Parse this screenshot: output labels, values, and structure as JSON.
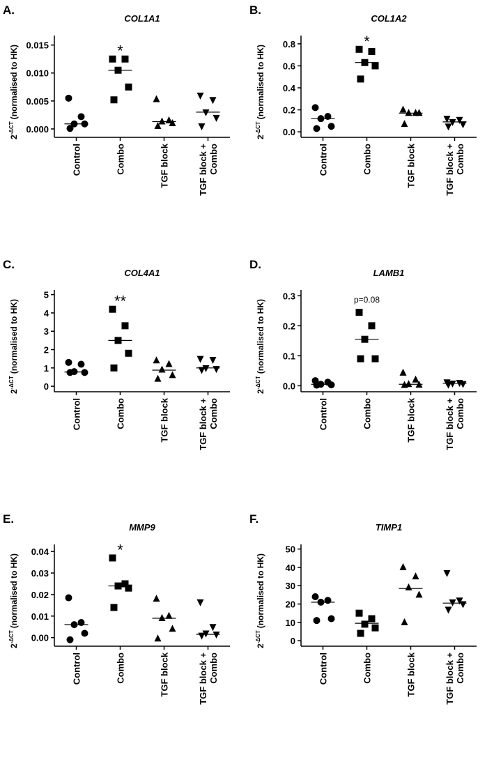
{
  "chart_data": [
    {
      "type": "dot",
      "label": "A.",
      "title": "COL1A1",
      "ylabel": {
        "base": "2",
        "sup": "-ΔCT",
        "text": "(normalised to HK)"
      },
      "categories": [
        [
          "Control"
        ],
        [
          "Combo"
        ],
        [
          "TGF block"
        ],
        [
          "TGF block +",
          "Combo"
        ]
      ],
      "markers": [
        "circle",
        "square",
        "triangle",
        "triangle-down"
      ],
      "color": "#000000",
      "values": [
        [
          0.0055,
          0.0022,
          0.0009,
          0.0009,
          0.0001
        ],
        [
          0.0125,
          0.0125,
          0.0105,
          0.0075,
          0.0052
        ],
        [
          0.0053,
          0.0015,
          0.0013,
          0.001,
          0.0005
        ],
        [
          0.006,
          0.0052,
          0.003,
          0.002,
          0.0005
        ]
      ],
      "medians": [
        0.0009,
        0.0105,
        0.0013,
        0.003
      ],
      "annotation": {
        "text": "*",
        "category": "Combo"
      },
      "ylim": [
        -0.0015,
        0.0162
      ],
      "yticks": [
        {
          "value": 0,
          "label": "0.000"
        },
        {
          "value": 0.005,
          "label": "0.005"
        },
        {
          "value": 0.01,
          "label": "0.010"
        },
        {
          "value": 0.015,
          "label": "0.015"
        }
      ]
    },
    {
      "type": "dot",
      "label": "B.",
      "title": "COL1A2",
      "ylabel": {
        "base": "2",
        "sup": "-ΔCT",
        "text": "(normalised to HK)"
      },
      "categories": [
        [
          "Control"
        ],
        [
          "Combo"
        ],
        [
          "TGF block"
        ],
        [
          "TGF block +",
          "Combo"
        ]
      ],
      "markers": [
        "circle",
        "square",
        "triangle",
        "triangle-down"
      ],
      "color": "#000000",
      "values": [
        [
          0.22,
          0.14,
          0.12,
          0.05,
          0.03
        ],
        [
          0.75,
          0.73,
          0.63,
          0.6,
          0.48
        ],
        [
          0.2,
          0.17,
          0.17,
          0.17,
          0.07
        ],
        [
          0.12,
          0.11,
          0.09,
          0.07,
          0.05
        ]
      ],
      "medians": [
        0.12,
        0.63,
        0.17,
        0.09
      ],
      "annotation": {
        "text": "*",
        "category": "Combo"
      },
      "ylim": [
        -0.05,
        0.85
      ],
      "yticks": [
        {
          "value": 0,
          "label": "0.0"
        },
        0.2,
        0.4,
        0.6,
        0.8
      ]
    },
    {
      "type": "dot",
      "label": "C.",
      "title": "COL4A1",
      "ylabel": {
        "base": "2",
        "sup": "-ΔCT",
        "text": "(normalised to HK)"
      },
      "categories": [
        [
          "Control"
        ],
        [
          "Combo"
        ],
        [
          "TGF block"
        ],
        [
          "TGF block +",
          "Combo"
        ]
      ],
      "markers": [
        "circle",
        "square",
        "triangle",
        "triangle-down"
      ],
      "color": "#000000",
      "values": [
        [
          1.3,
          1.2,
          0.8,
          0.75,
          0.75
        ],
        [
          4.2,
          3.3,
          2.5,
          1.8,
          1.0
        ],
        [
          1.4,
          1.2,
          0.9,
          0.6,
          0.4
        ],
        [
          1.5,
          1.45,
          1.0,
          0.95,
          0.9
        ]
      ],
      "medians": [
        0.78,
        2.5,
        0.88,
        1.0
      ],
      "annotation": {
        "text": "**",
        "category": "Combo"
      },
      "ylim": [
        -0.3,
        5.1
      ],
      "yticks": [
        0,
        1,
        2,
        3,
        4,
        5
      ]
    },
    {
      "type": "dot",
      "label": "D.",
      "title": "LAMB1",
      "ylabel": {
        "base": "2",
        "sup": "-ΔCT",
        "text": "(normalised to HK)"
      },
      "categories": [
        [
          "Control"
        ],
        [
          "Combo"
        ],
        [
          "TGF block"
        ],
        [
          "TGF block +",
          "Combo"
        ]
      ],
      "markers": [
        "circle",
        "square",
        "triangle",
        "triangle-down"
      ],
      "color": "#000000",
      "values": [
        [
          0.017,
          0.012,
          0.005,
          0.003,
          0.002
        ],
        [
          0.245,
          0.2,
          0.155,
          0.09,
          0.09
        ],
        [
          0.043,
          0.02,
          0.005,
          0.003,
          0.002
        ],
        [
          0.012,
          0.01,
          0.008,
          0.006,
          0.004
        ]
      ],
      "medians": [
        0.005,
        0.155,
        0.005,
        0.008
      ],
      "annotation": {
        "text": "p=0.08",
        "category": "Combo"
      },
      "ylim": [
        -0.02,
        0.31
      ],
      "yticks": [
        {
          "value": 0,
          "label": "0.0"
        },
        0.1,
        0.2,
        0.3
      ]
    },
    {
      "type": "dot",
      "label": "E.",
      "title": "MMP9",
      "ylabel": {
        "base": "2",
        "sup": "-ΔCT",
        "text": "(normalised to HK)"
      },
      "categories": [
        [
          "Control"
        ],
        [
          "Combo"
        ],
        [
          "TGF block"
        ],
        [
          "TGF block +",
          "Combo"
        ]
      ],
      "markers": [
        "circle",
        "square",
        "triangle",
        "triangle-down"
      ],
      "color": "#000000",
      "values": [
        [
          0.0185,
          0.007,
          0.006,
          0.002,
          -0.001
        ],
        [
          0.037,
          0.025,
          0.024,
          0.023,
          0.014
        ],
        [
          0.018,
          0.01,
          0.009,
          0.004,
          -0.0005
        ],
        [
          0.0165,
          0.005,
          0.002,
          0.0015,
          0.001
        ]
      ],
      "medians": [
        0.006,
        0.024,
        0.009,
        0.0015
      ],
      "annotation": {
        "text": "*",
        "category": "Combo"
      },
      "ylim": [
        -0.004,
        0.042
      ],
      "yticks": [
        {
          "value": 0,
          "label": "0.00"
        },
        {
          "value": 0.01,
          "label": "0.01"
        },
        {
          "value": 0.02,
          "label": "0.02"
        },
        {
          "value": 0.03,
          "label": "0.03"
        },
        {
          "value": 0.04,
          "label": "0.04"
        }
      ]
    },
    {
      "type": "dot",
      "label": "F.",
      "title": "TIMP1",
      "ylabel": {
        "base": "2",
        "sup": "-ΔCT",
        "text": "(normalised to HK)"
      },
      "categories": [
        [
          "Control"
        ],
        [
          "Combo"
        ],
        [
          "TGF block"
        ],
        [
          "TGF block +",
          "Combo"
        ]
      ],
      "markers": [
        "circle",
        "square",
        "triangle",
        "triangle-down"
      ],
      "color": "#000000",
      "values": [
        [
          24,
          22,
          21,
          12,
          11
        ],
        [
          15,
          12,
          9,
          7,
          4
        ],
        [
          40,
          35,
          29,
          25,
          10
        ],
        [
          37,
          22,
          21,
          20,
          17
        ]
      ],
      "medians": [
        21,
        9.5,
        28.5,
        20.5
      ],
      "ylim": [
        -3,
        51
      ],
      "yticks": [
        0,
        10,
        20,
        30,
        40,
        50
      ]
    }
  ]
}
